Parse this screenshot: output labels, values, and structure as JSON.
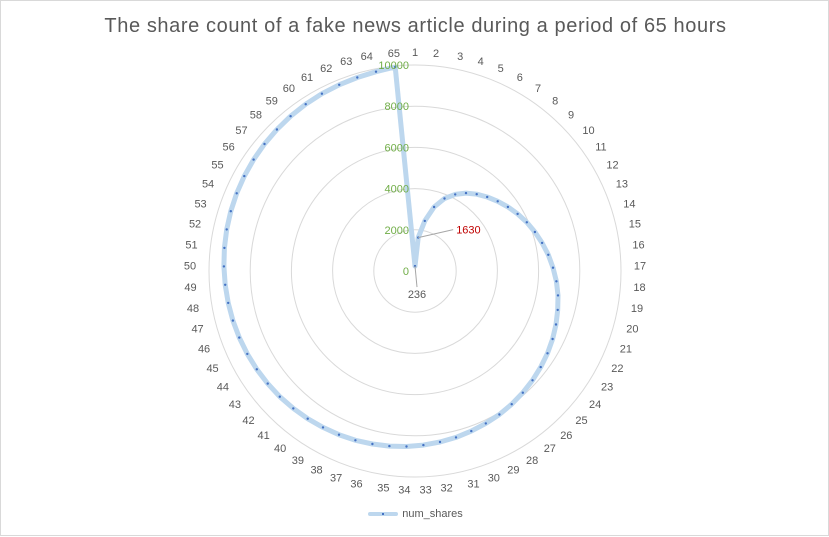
{
  "chart_data": {
    "type": "radar",
    "title": "The share count of a fake news article during a period of 65 hours",
    "categories": [
      "1",
      "2",
      "3",
      "4",
      "5",
      "6",
      "7",
      "8",
      "9",
      "10",
      "11",
      "12",
      "13",
      "14",
      "15",
      "16",
      "17",
      "18",
      "19",
      "20",
      "21",
      "22",
      "23",
      "24",
      "25",
      "26",
      "27",
      "28",
      "29",
      "30",
      "31",
      "32",
      "33",
      "34",
      "35",
      "36",
      "37",
      "38",
      "39",
      "40",
      "41",
      "42",
      "43",
      "44",
      "45",
      "46",
      "47",
      "48",
      "49",
      "50",
      "51",
      "52",
      "53",
      "54",
      "55",
      "56",
      "57",
      "58",
      "59",
      "60",
      "61",
      "62",
      "63",
      "64",
      "65"
    ],
    "series": [
      {
        "name": "num_shares",
        "color": "#bdd7ee",
        "marker_color": "#4472c4",
        "values": [
          236,
          1630,
          2480,
          3240,
          3800,
          4200,
          4520,
          4780,
          5020,
          5250,
          5480,
          5700,
          5920,
          6120,
          6320,
          6520,
          6700,
          6880,
          7040,
          7180,
          7320,
          7450,
          7570,
          7680,
          7790,
          7890,
          7990,
          8080,
          8160,
          8240,
          8320,
          8390,
          8460,
          8530,
          8590,
          8650,
          8710,
          8760,
          8810,
          8860,
          8910,
          8960,
          9000,
          9040,
          9080,
          9120,
          9160,
          9200,
          9240,
          9280,
          9320,
          9360,
          9400,
          9440,
          9480,
          9520,
          9560,
          9600,
          9640,
          9680,
          9720,
          9760,
          9800,
          9860,
          9950
        ]
      }
    ],
    "radial_axis": {
      "min": 0,
      "max": 10000,
      "ticks": [
        "0",
        "2000",
        "4000",
        "6000",
        "8000",
        "10000"
      ]
    },
    "data_labels": [
      {
        "category": "1",
        "value": "236"
      },
      {
        "category": "2",
        "value": "1630"
      }
    ],
    "legend": "bottom",
    "grid": true
  }
}
